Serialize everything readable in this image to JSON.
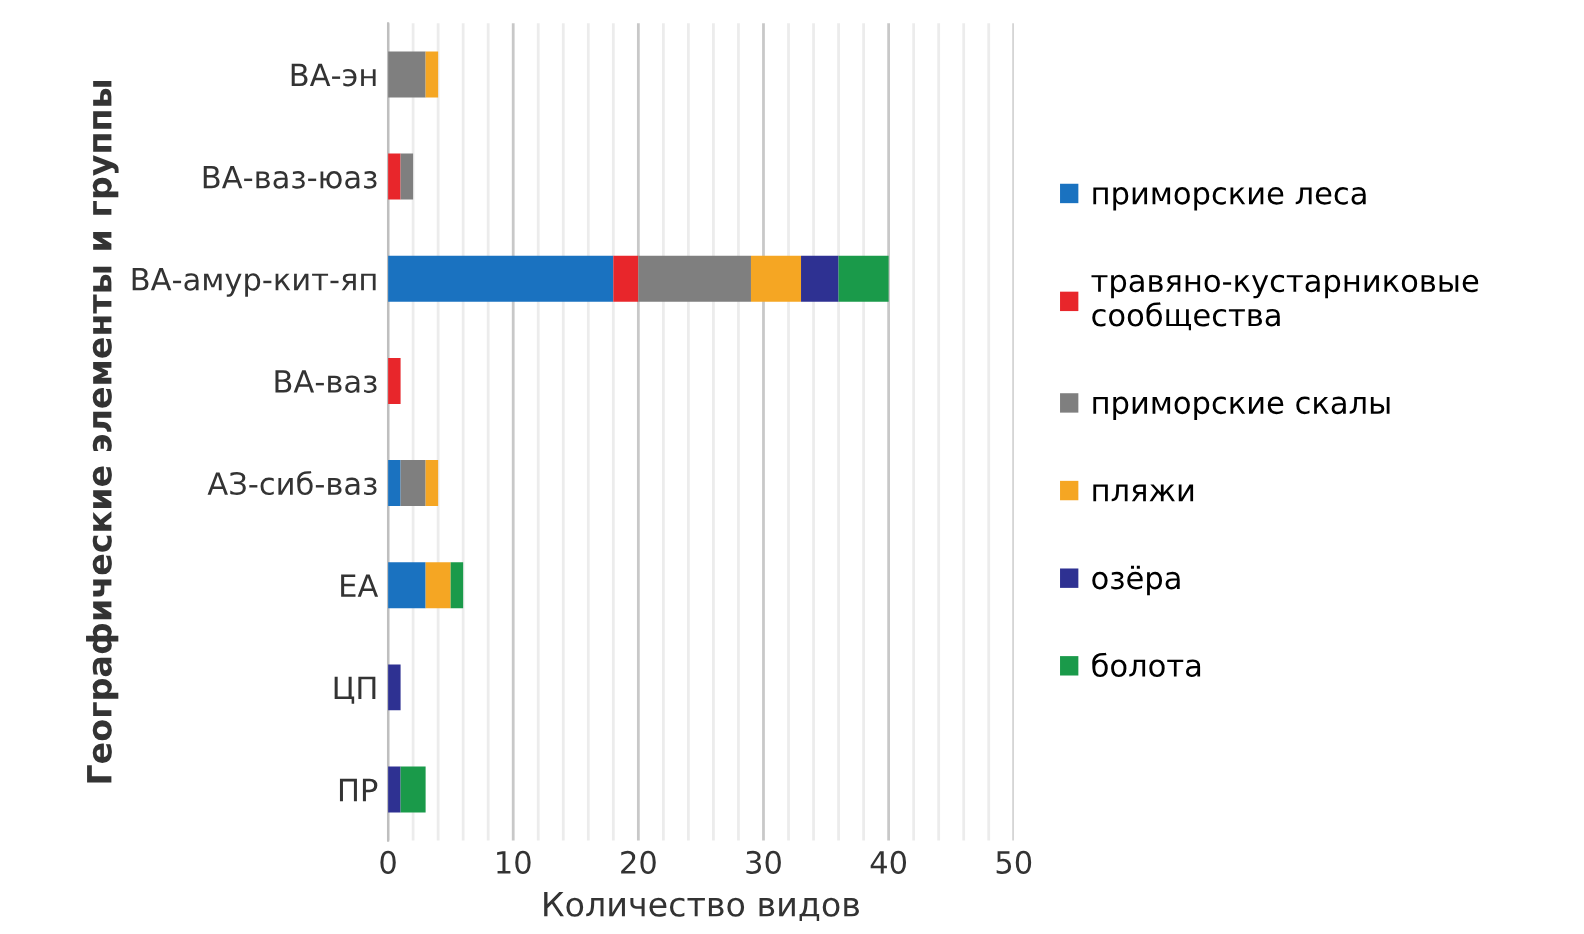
{
  "chart_data": {
    "type": "bar",
    "orientation": "horizontal",
    "stacked": true,
    "xlabel": "Количество видов",
    "ylabel": "Географические элементы и группы",
    "categories": [
      "ВА-эн",
      "ВА-ваз-юаз",
      "ВА-амур-кит-яп",
      "ВА-ваз",
      "АЗ-сиб-ваз",
      "ЕА",
      "ЦП",
      "ПР"
    ],
    "series": [
      {
        "name": "приморские леса",
        "color": "#1a72c0",
        "values": [
          0,
          0,
          18,
          0,
          1,
          3,
          0,
          0
        ]
      },
      {
        "name": "травяно-кустарниковые\nсообщества",
        "color": "#e8262b",
        "values": [
          0,
          1,
          2,
          1,
          0,
          0,
          0,
          0
        ]
      },
      {
        "name": "приморские скалы",
        "color": "#7f7f7f",
        "values": [
          3,
          1,
          9,
          0,
          2,
          0,
          0,
          0
        ]
      },
      {
        "name": "пляжи",
        "color": "#f5a623",
        "values": [
          1,
          0,
          4,
          0,
          1,
          2,
          0,
          0
        ]
      },
      {
        "name": "озёра",
        "color": "#2e3192",
        "values": [
          0,
          0,
          3,
          0,
          0,
          0,
          1,
          1
        ]
      },
      {
        "name": "болота",
        "color": "#1a9a4a",
        "values": [
          0,
          0,
          4,
          0,
          0,
          1,
          0,
          2
        ]
      }
    ],
    "xlim": [
      0,
      50
    ],
    "xticks": [
      0,
      {
        "value": 2,
        "label": null
      },
      {
        "value": 4,
        "label": null
      },
      {
        "value": 6,
        "label": null
      },
      {
        "value": 8,
        "label": null
      },
      10,
      {
        "value": 12,
        "label": null
      },
      {
        "value": 14,
        "label": null
      },
      {
        "value": 16,
        "label": null
      },
      {
        "value": 18,
        "label": null
      },
      20,
      {
        "value": 22,
        "label": null
      },
      {
        "value": 24,
        "label": null
      },
      {
        "value": 26,
        "label": null
      },
      {
        "value": 28,
        "label": null
      },
      30,
      {
        "value": 32,
        "label": null
      },
      {
        "value": 34,
        "label": null
      },
      {
        "value": 36,
        "label": null
      },
      {
        "value": 38,
        "label": null
      },
      40,
      {
        "value": 42,
        "label": null
      },
      {
        "value": 44,
        "label": null
      },
      {
        "value": 46,
        "label": null
      },
      {
        "value": 48,
        "label": null
      },
      50
    ],
    "grid": "x",
    "legend": "right"
  }
}
